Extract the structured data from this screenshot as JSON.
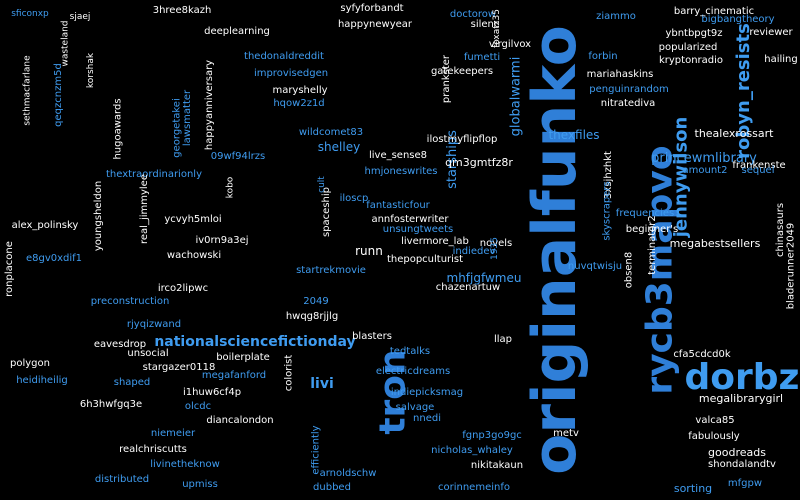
{
  "colors": {
    "background": "#000000",
    "white": "#ffffff",
    "blue_bright": "#3f9cf0",
    "blue_mid": "#2f7fd8",
    "blue_dark": "#2c4fa8",
    "blue_light": "#6fb4f2"
  },
  "words": [
    {
      "text": "originalfunko",
      "color": "blue_mid"
    },
    {
      "text": "rycb3mapvo",
      "color": "blue_mid"
    },
    {
      "text": "tron",
      "color": "blue_mid"
    },
    {
      "text": "dorbz",
      "color": "blue_bright"
    },
    {
      "text": "robyn_resists",
      "color": "blue_bright"
    },
    {
      "text": "jennywilson",
      "color": "blue_bright"
    },
    {
      "text": "starships",
      "color": "blue_bright"
    },
    {
      "text": "princewmlibrary",
      "color": "blue_bright"
    },
    {
      "text": "nationalsciencefictionday",
      "color": "blue_bright"
    },
    {
      "text": "shelley",
      "color": "blue_bright"
    },
    {
      "text": "runn",
      "color": "white"
    },
    {
      "text": "livi",
      "color": "blue_bright"
    },
    {
      "text": "qm3gmtfz8r",
      "color": "white"
    },
    {
      "text": "globalwarmi",
      "color": "blue_bright"
    },
    {
      "text": "thexfiles",
      "color": "blue_bright"
    },
    {
      "text": "mhfjgfwmeu",
      "color": "blue_bright"
    },
    {
      "text": "megabestsellers",
      "color": "white"
    },
    {
      "text": "megalibrarygirl",
      "color": "white"
    },
    {
      "text": "valca85",
      "color": "white"
    },
    {
      "text": "fabulously",
      "color": "white"
    },
    {
      "text": "shondalandtv",
      "color": "white"
    },
    {
      "text": "goodreads",
      "color": "white"
    },
    {
      "text": "sorting",
      "color": "blue_bright"
    },
    {
      "text": "mfgpw",
      "color": "blue_bright"
    },
    {
      "text": "thealexrossart",
      "color": "white"
    },
    {
      "text": "frankenste",
      "color": "white"
    },
    {
      "text": "amount2",
      "color": "blue_bright"
    },
    {
      "text": "sequel",
      "color": "blue_bright"
    },
    {
      "text": "chinasaurs",
      "color": "white"
    },
    {
      "text": "bladerunner2049",
      "color": "white"
    },
    {
      "text": "reviewer",
      "color": "white"
    },
    {
      "text": "hailing",
      "color": "white"
    },
    {
      "text": "bigbangtheory",
      "color": "blue_bright"
    },
    {
      "text": "barry_cinematic",
      "color": "white"
    },
    {
      "text": "ziammo",
      "color": "blue_bright"
    },
    {
      "text": "ybntbpgt9z",
      "color": "white"
    },
    {
      "text": "popularized",
      "color": "white"
    },
    {
      "text": "kryptonradio",
      "color": "white"
    },
    {
      "text": "mariahaskins",
      "color": "white"
    },
    {
      "text": "penguinrandom",
      "color": "blue_bright"
    },
    {
      "text": "nitratediva",
      "color": "white"
    },
    {
      "text": "forbin",
      "color": "blue_bright"
    },
    {
      "text": "fumetti",
      "color": "blue_bright"
    },
    {
      "text": "virgilvox",
      "color": "white"
    },
    {
      "text": "silenc",
      "color": "white"
    },
    {
      "text": "doctorow",
      "color": "blue_bright"
    },
    {
      "text": "gatekeepers",
      "color": "white"
    },
    {
      "text": "prankster",
      "color": "white"
    },
    {
      "text": "foxatz35",
      "color": "white"
    },
    {
      "text": "happynewyear",
      "color": "white"
    },
    {
      "text": "syfyforbandt",
      "color": "white"
    },
    {
      "text": "3hree8kazh",
      "color": "white"
    },
    {
      "text": "deeplearning",
      "color": "white"
    },
    {
      "text": "thedonaldreddit",
      "color": "blue_bright"
    },
    {
      "text": "improvisedgen",
      "color": "blue_bright"
    },
    {
      "text": "maryshelly",
      "color": "white"
    },
    {
      "text": "hqow2z1d",
      "color": "blue_bright"
    },
    {
      "text": "wildcomet83",
      "color": "blue_bright"
    },
    {
      "text": "iloscp",
      "color": "blue_bright"
    },
    {
      "text": "ilostmyflipflop",
      "color": "white"
    },
    {
      "text": "live_sense8",
      "color": "white"
    },
    {
      "text": "hmjoneswrites",
      "color": "blue_bright"
    },
    {
      "text": "fantasticfour",
      "color": "blue_bright"
    },
    {
      "text": "09wf94lrzs",
      "color": "blue_bright"
    },
    {
      "text": "sethmacfarlane",
      "color": "white"
    },
    {
      "text": "sficonxp",
      "color": "blue_bright"
    },
    {
      "text": "sjaej",
      "color": "white"
    },
    {
      "text": "korshak",
      "color": "white"
    },
    {
      "text": "wasteland",
      "color": "white"
    },
    {
      "text": "georgetakei",
      "color": "blue_bright"
    },
    {
      "text": "lawsmatter",
      "color": "blue_bright"
    },
    {
      "text": "qeqzcnzm5d",
      "color": "blue_bright"
    },
    {
      "text": "hugoawards",
      "color": "white"
    },
    {
      "text": "happyanniversary",
      "color": "white"
    },
    {
      "text": "thextraordinarionly",
      "color": "blue_bright"
    },
    {
      "text": "alex_polinsky",
      "color": "white"
    },
    {
      "text": "annfosterwriter",
      "color": "white"
    },
    {
      "text": "livermore_lab",
      "color": "white"
    },
    {
      "text": "novels",
      "color": "white"
    },
    {
      "text": "unsungtweets",
      "color": "blue_bright"
    },
    {
      "text": "thepopculturist",
      "color": "white"
    },
    {
      "text": "youngsheldon",
      "color": "white"
    },
    {
      "text": "e8gv0xdif1",
      "color": "blue_bright"
    },
    {
      "text": "iv0rn9a3ej",
      "color": "white"
    },
    {
      "text": "wachowski",
      "color": "white"
    },
    {
      "text": "ycvyh5mloi",
      "color": "white"
    },
    {
      "text": "real_jimmylee",
      "color": "white"
    },
    {
      "text": "startrekmovie",
      "color": "blue_bright"
    },
    {
      "text": "chazenartuw",
      "color": "white"
    },
    {
      "text": "indiedev",
      "color": "blue_bright"
    },
    {
      "text": "nuvqtwisju",
      "color": "blue_bright"
    },
    {
      "text": "preconstruction",
      "color": "blue_bright"
    },
    {
      "text": "irco2lipwc",
      "color": "white"
    },
    {
      "text": "2049",
      "color": "blue_bright"
    },
    {
      "text": "hwqg8rjjlg",
      "color": "white"
    },
    {
      "text": "rjyqizwand",
      "color": "blue_bright"
    },
    {
      "text": "eavesdrop",
      "color": "white"
    },
    {
      "text": "unsocial",
      "color": "white"
    },
    {
      "text": "boilerplate",
      "color": "white"
    },
    {
      "text": "stargazer0118",
      "color": "white"
    },
    {
      "text": "megafanford",
      "color": "blue_bright"
    },
    {
      "text": "shaped",
      "color": "blue_bright"
    },
    {
      "text": "6h3hwfgq3e",
      "color": "white"
    },
    {
      "text": "i1huw6cf4p",
      "color": "white"
    },
    {
      "text": "olcdc",
      "color": "blue_bright"
    },
    {
      "text": "diancalondon",
      "color": "white"
    },
    {
      "text": "niemeier",
      "color": "blue_bright"
    },
    {
      "text": "realchriscutts",
      "color": "white"
    },
    {
      "text": "livinetheknow",
      "color": "blue_bright"
    },
    {
      "text": "distributed",
      "color": "blue_bright"
    },
    {
      "text": "upmiss",
      "color": "blue_bright"
    },
    {
      "text": "polygon",
      "color": "white"
    },
    {
      "text": "heidiheilig",
      "color": "blue_bright"
    },
    {
      "text": "ronplacone",
      "color": "white"
    },
    {
      "text": "blasters",
      "color": "white"
    },
    {
      "text": "tedtalks",
      "color": "blue_bright"
    },
    {
      "text": "electricdreams",
      "color": "blue_bright"
    },
    {
      "text": "indiepicksmag",
      "color": "blue_bright"
    },
    {
      "text": "salvage",
      "color": "blue_bright"
    },
    {
      "text": "nnedi",
      "color": "blue_bright"
    },
    {
      "text": "fgnp3go9gc",
      "color": "blue_bright"
    },
    {
      "text": "nicholas_whaley",
      "color": "blue_bright"
    },
    {
      "text": "nikitakaun",
      "color": "white"
    },
    {
      "text": "arnoldschw",
      "color": "blue_bright"
    },
    {
      "text": "dubbed",
      "color": "blue_bright"
    },
    {
      "text": "corinnemeinfo",
      "color": "blue_bright"
    },
    {
      "text": "metv",
      "color": "white"
    },
    {
      "text": "cfa5cdcd0k",
      "color": "white"
    },
    {
      "text": "terminator2",
      "color": "white"
    },
    {
      "text": "obsen8",
      "color": "white"
    },
    {
      "text": "3xsjhzhkt",
      "color": "white"
    },
    {
      "text": "frequencies",
      "color": "blue_bright"
    },
    {
      "text": "beginner's",
      "color": "white"
    },
    {
      "text": "skyscrapers",
      "color": "blue_bright"
    },
    {
      "text": "llap",
      "color": "white"
    },
    {
      "text": "1935",
      "color": "blue_bright"
    },
    {
      "text": "spaceship",
      "color": "white"
    },
    {
      "text": "cult",
      "color": "blue_bright"
    },
    {
      "text": "efficiently",
      "color": "blue_bright"
    },
    {
      "text": "colorist",
      "color": "white"
    },
    {
      "text": "kobo",
      "color": "white"
    }
  ]
}
